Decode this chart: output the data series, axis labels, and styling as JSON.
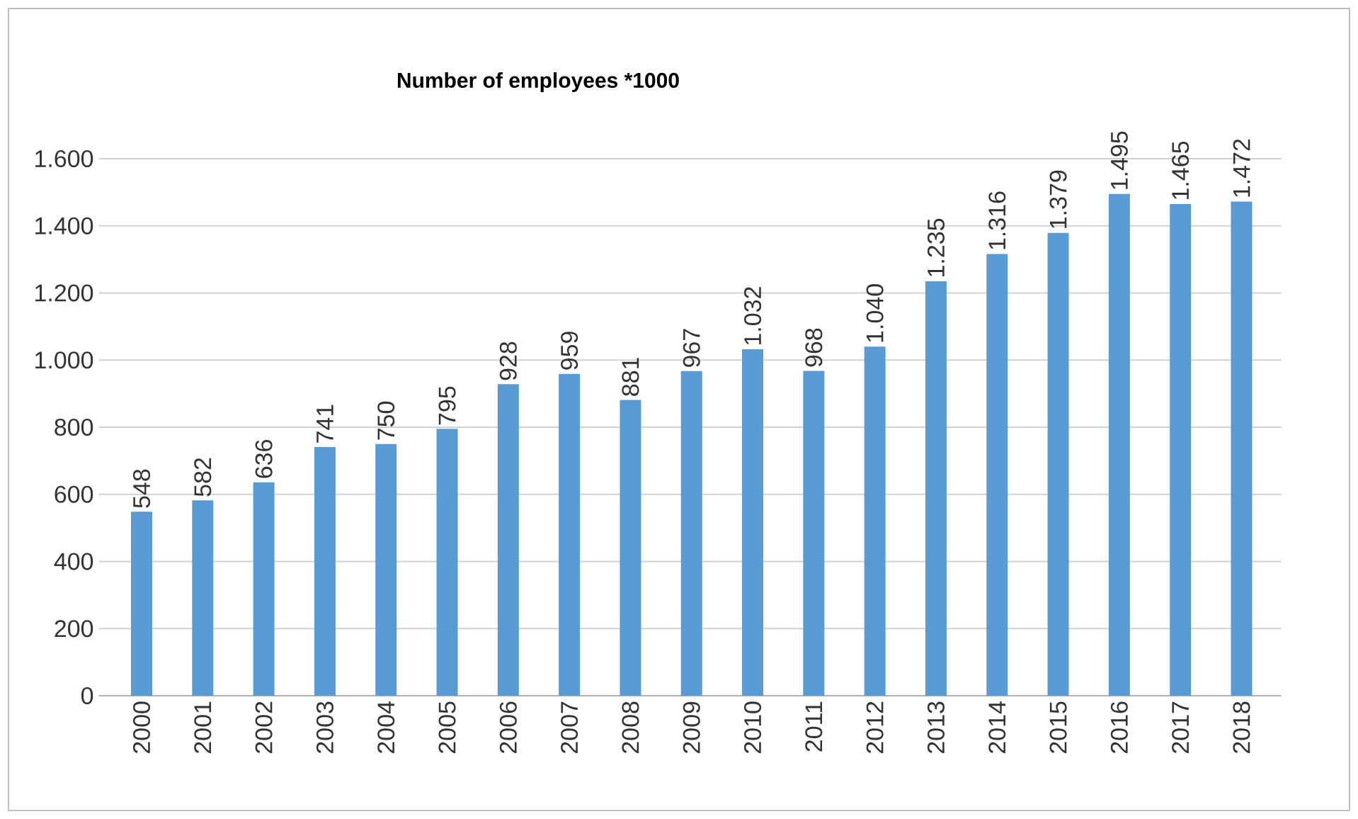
{
  "chart_data": {
    "type": "bar",
    "title": "Number of employees *1000",
    "categories": [
      "2000",
      "2001",
      "2002",
      "2003",
      "2004",
      "2005",
      "2006",
      "2007",
      "2008",
      "2009",
      "2010",
      "2011",
      "2012",
      "2013",
      "2014",
      "2015",
      "2016",
      "2017",
      "2018"
    ],
    "values": [
      548,
      582,
      636,
      741,
      750,
      795,
      928,
      959,
      881,
      967,
      1032,
      968,
      1040,
      1235,
      1316,
      1379,
      1495,
      1465,
      1472
    ],
    "value_labels": [
      "548",
      "582",
      "636",
      "741",
      "750",
      "795",
      "928",
      "959",
      "881",
      "967",
      "1.032",
      "968",
      "1.040",
      "1.235",
      "1.316",
      "1.379",
      "1.495",
      "1.465",
      "1.472"
    ],
    "color": "#5b9bd5",
    "ylim": [
      0,
      1600
    ],
    "yticks": [
      0,
      200,
      400,
      600,
      800,
      {
        "value": 1000,
        "label": "1.000"
      },
      {
        "value": 1200,
        "label": "1.200"
      },
      {
        "value": 1400,
        "label": "1.400"
      },
      {
        "value": 1600,
        "label": "1.600"
      }
    ],
    "grid": "y"
  }
}
